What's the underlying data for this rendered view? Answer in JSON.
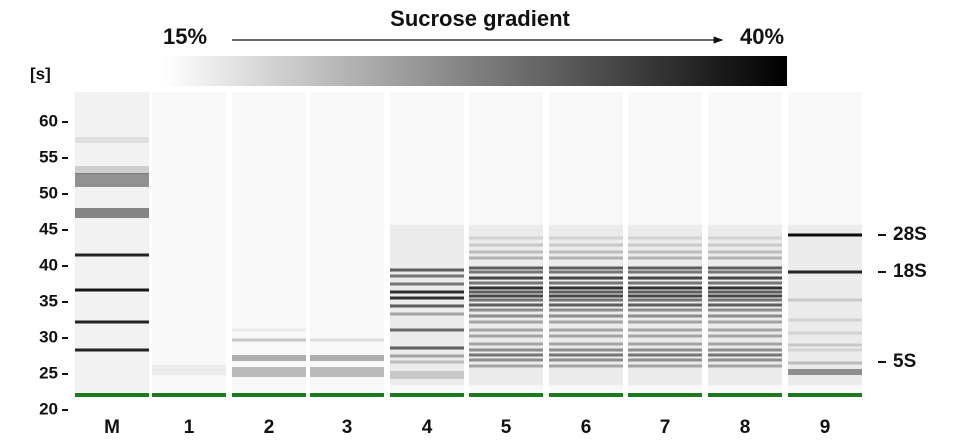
{
  "header": {
    "title": "Sucrose gradient",
    "start": "15%",
    "end": "40%"
  },
  "axis": {
    "unit": "[s]",
    "ticks": [
      "20",
      "25",
      "30",
      "35",
      "40",
      "45",
      "50",
      "55",
      "60"
    ]
  },
  "lanes": [
    "M",
    "1",
    "2",
    "3",
    "4",
    "5",
    "6",
    "7",
    "8",
    "9"
  ],
  "markers": [
    "28S",
    "18S",
    "5S"
  ]
}
